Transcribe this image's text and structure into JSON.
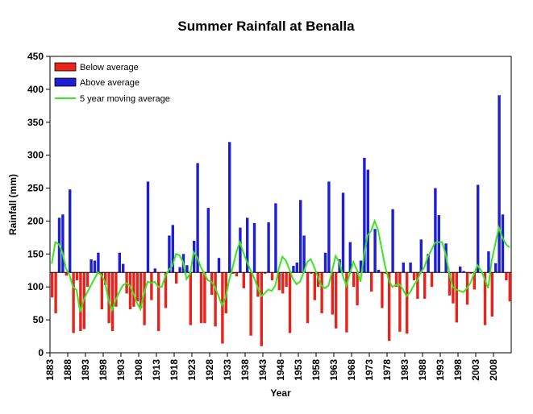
{
  "chart_data": {
    "type": "bar",
    "title": "Summer Rainfall at Benalla",
    "xlabel": "Year",
    "ylabel": "Rainfall (mm)",
    "ylim": [
      0,
      450
    ],
    "yticks": [
      0,
      50,
      100,
      150,
      200,
      250,
      300,
      350,
      400,
      450
    ],
    "xtick_labels": [
      "1883",
      "1888",
      "1893",
      "1898",
      "1903",
      "1908",
      "1913",
      "1918",
      "1923",
      "1928",
      "1933",
      "1938",
      "1943",
      "1948",
      "1953",
      "1958",
      "1963",
      "1968",
      "1973",
      "1978",
      "1983",
      "1988",
      "1993",
      "1998",
      "2003",
      "2008"
    ],
    "baseline": 122,
    "grid": false,
    "legend_position": "top-left",
    "legend": [
      {
        "label": "Below average",
        "color": "#e8231c",
        "kind": "bar"
      },
      {
        "label": "Above average",
        "color": "#1e1ed2",
        "kind": "bar"
      },
      {
        "label": "5 year moving average",
        "color": "#39e61f",
        "kind": "line"
      }
    ],
    "years": [
      1883,
      1884,
      1885,
      1886,
      1887,
      1888,
      1889,
      1890,
      1891,
      1892,
      1893,
      1894,
      1895,
      1896,
      1897,
      1898,
      1899,
      1900,
      1901,
      1902,
      1903,
      1904,
      1905,
      1906,
      1907,
      1908,
      1909,
      1910,
      1911,
      1912,
      1913,
      1914,
      1915,
      1916,
      1917,
      1918,
      1919,
      1920,
      1921,
      1922,
      1923,
      1924,
      1925,
      1926,
      1927,
      1928,
      1929,
      1930,
      1931,
      1932,
      1933,
      1934,
      1935,
      1936,
      1937,
      1938,
      1939,
      1940,
      1941,
      1942,
      1943,
      1944,
      1945,
      1946,
      1947,
      1948,
      1949,
      1950,
      1951,
      1952,
      1953,
      1954,
      1955,
      1956,
      1957,
      1958,
      1959,
      1960,
      1961,
      1962,
      1963,
      1964,
      1965,
      1966,
      1967,
      1968,
      1969,
      1970,
      1971,
      1972,
      1973,
      1974,
      1975,
      1976,
      1977,
      1978,
      1979,
      1980,
      1981,
      1982,
      1983,
      1984,
      1985,
      1986,
      1987,
      1988,
      1989,
      1990,
      1991,
      1992,
      1993,
      1994,
      1995,
      1996,
      1997,
      1998,
      1999,
      2000,
      2001,
      2002,
      2003,
      2004,
      2005,
      2006,
      2007,
      2008,
      2009,
      2010,
      2011,
      2012
    ],
    "values": [
      84,
      60,
      205,
      210,
      117,
      248,
      30,
      110,
      33,
      36,
      100,
      142,
      140,
      152,
      66,
      103,
      45,
      33,
      70,
      152,
      135,
      90,
      66,
      70,
      78,
      68,
      42,
      260,
      80,
      128,
      33,
      122,
      68,
      178,
      194,
      105,
      130,
      150,
      133,
      42,
      170,
      288,
      45,
      45,
      220,
      88,
      40,
      144,
      14,
      60,
      320,
      120,
      116,
      190,
      98,
      205,
      26,
      197,
      85,
      10,
      120,
      198,
      110,
      227,
      95,
      90,
      100,
      30,
      132,
      137,
      232,
      178,
      45,
      120,
      80,
      100,
      60,
      152,
      260,
      58,
      37,
      142,
      243,
      31,
      168,
      100,
      72,
      140,
      296,
      278,
      93,
      188,
      126,
      68,
      120,
      18,
      218,
      100,
      32,
      137,
      29,
      137,
      110,
      82,
      172,
      82,
      150,
      100,
      250,
      209,
      122,
      166,
      87,
      75,
      46,
      131,
      124,
      73,
      120,
      96,
      255,
      121,
      42,
      154,
      55,
      136,
      391,
      210,
      110,
      78
    ],
    "moving_average": [
      135,
      168,
      165,
      152,
      128,
      118,
      100,
      95,
      62,
      80,
      92,
      102,
      112,
      122,
      118,
      108,
      80,
      65,
      80,
      92,
      102,
      106,
      102,
      90,
      76,
      66,
      90,
      108,
      106,
      108,
      100,
      100,
      116,
      126,
      132,
      150,
      148,
      138,
      112,
      120,
      153,
      145,
      130,
      120,
      110,
      108,
      100,
      86,
      72,
      84,
      110,
      130,
      152,
      168,
      152,
      138,
      126,
      114,
      100,
      86,
      90,
      96,
      94,
      102,
      128,
      146,
      140,
      126,
      112,
      104,
      108,
      122,
      138,
      142,
      130,
      115,
      102,
      98,
      102,
      124,
      147,
      138,
      118,
      102,
      120,
      138,
      126,
      108,
      148,
      178,
      185,
      200,
      186,
      158,
      130,
      110,
      100,
      103,
      104,
      96,
      86,
      92,
      102,
      110,
      122,
      130,
      146,
      156,
      167,
      168,
      168,
      150,
      122,
      100,
      96,
      94,
      92,
      98,
      106,
      120,
      133,
      125,
      112,
      98,
      140,
      165,
      190,
      175,
      165,
      160
    ]
  }
}
